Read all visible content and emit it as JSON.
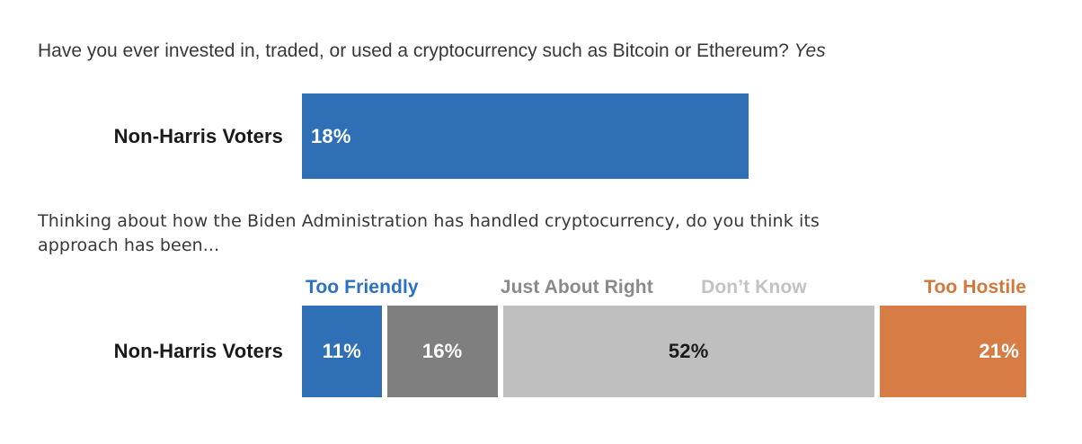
{
  "page": {
    "background": "#FFFFFF"
  },
  "questions": {
    "q1": {
      "text": "Have you ever invested in, traded, or used a cryptocurrency such as Bitcoin or Ethereum?",
      "answer_italic": "Yes"
    },
    "q2": {
      "line1": "Thinking about how the Biden Administration has handled cryptocurrency, do you think its",
      "line2": "approach has been..."
    }
  },
  "chart_data": [
    {
      "type": "bar",
      "orientation": "horizontal",
      "title": "Have you ever invested in, traded, or used a cryptocurrency such as Bitcoin or Ethereum? Yes",
      "categories": [
        "Non-Harris Voters"
      ],
      "values": [
        18
      ],
      "value_labels": [
        "18%"
      ],
      "bar_color": "#2E6FB5",
      "value_label_color": "#FFFFFF",
      "xlim": [
        0,
        29.2
      ],
      "grid": false,
      "axis_visible": false
    },
    {
      "type": "bar",
      "subtype": "stacked",
      "orientation": "horizontal",
      "title": "Thinking about how the Biden Administration has handled cryptocurrency, do you think its approach has been...",
      "categories": [
        "Non-Harris Voters"
      ],
      "xlim": [
        0,
        100
      ],
      "legend_position": "top",
      "grid": false,
      "axis_visible": false,
      "series": [
        {
          "name": "Too Friendly",
          "value": 11,
          "label": "11%",
          "color": "#2E6FB5",
          "label_color": "#FFFFFF",
          "legend_color": "#2C70C4"
        },
        {
          "name": "Just About Right",
          "value": 16,
          "label": "16%",
          "color": "#7F7F7F",
          "label_color": "#FFFFFF",
          "legend_color": "#8A8A8A"
        },
        {
          "name": "Don’t Know",
          "value": 52,
          "label": "52%",
          "color": "#BFBFBF",
          "label_color": "#1A1A1A",
          "legend_color": "#C2C2C2"
        },
        {
          "name": "Too Hostile",
          "value": 21,
          "label": "21%",
          "color": "#D87C45",
          "label_color": "#FFFFFF",
          "legend_color": "#D3773A"
        }
      ]
    }
  ]
}
